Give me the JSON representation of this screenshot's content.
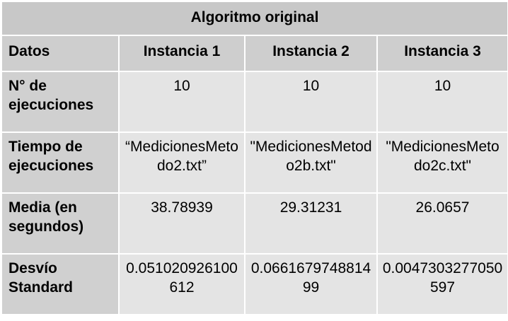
{
  "title": "Algoritmo original",
  "columns": [
    "Datos",
    "Instancia 1",
    "Instancia 2",
    "Instancia 3"
  ],
  "rows": [
    {
      "label": "N° de ejecuciones",
      "values": [
        "10",
        "10",
        "10"
      ]
    },
    {
      "label": "Tiempo de ejecuciones",
      "values": [
        "“MedicionesMetodo2.txt”",
        "\"MedicionesMetodo2b.txt\"",
        "\"MedicionesMetodo2c.txt\""
      ]
    },
    {
      "label": "Media (en segundos)",
      "values": [
        "38.78939",
        "29.31231",
        "26.0657"
      ]
    },
    {
      "label": "Desvío Standard",
      "values": [
        "0.051020926100612",
        "0.066167974881499",
        "0.0047303277050597"
      ]
    }
  ]
}
